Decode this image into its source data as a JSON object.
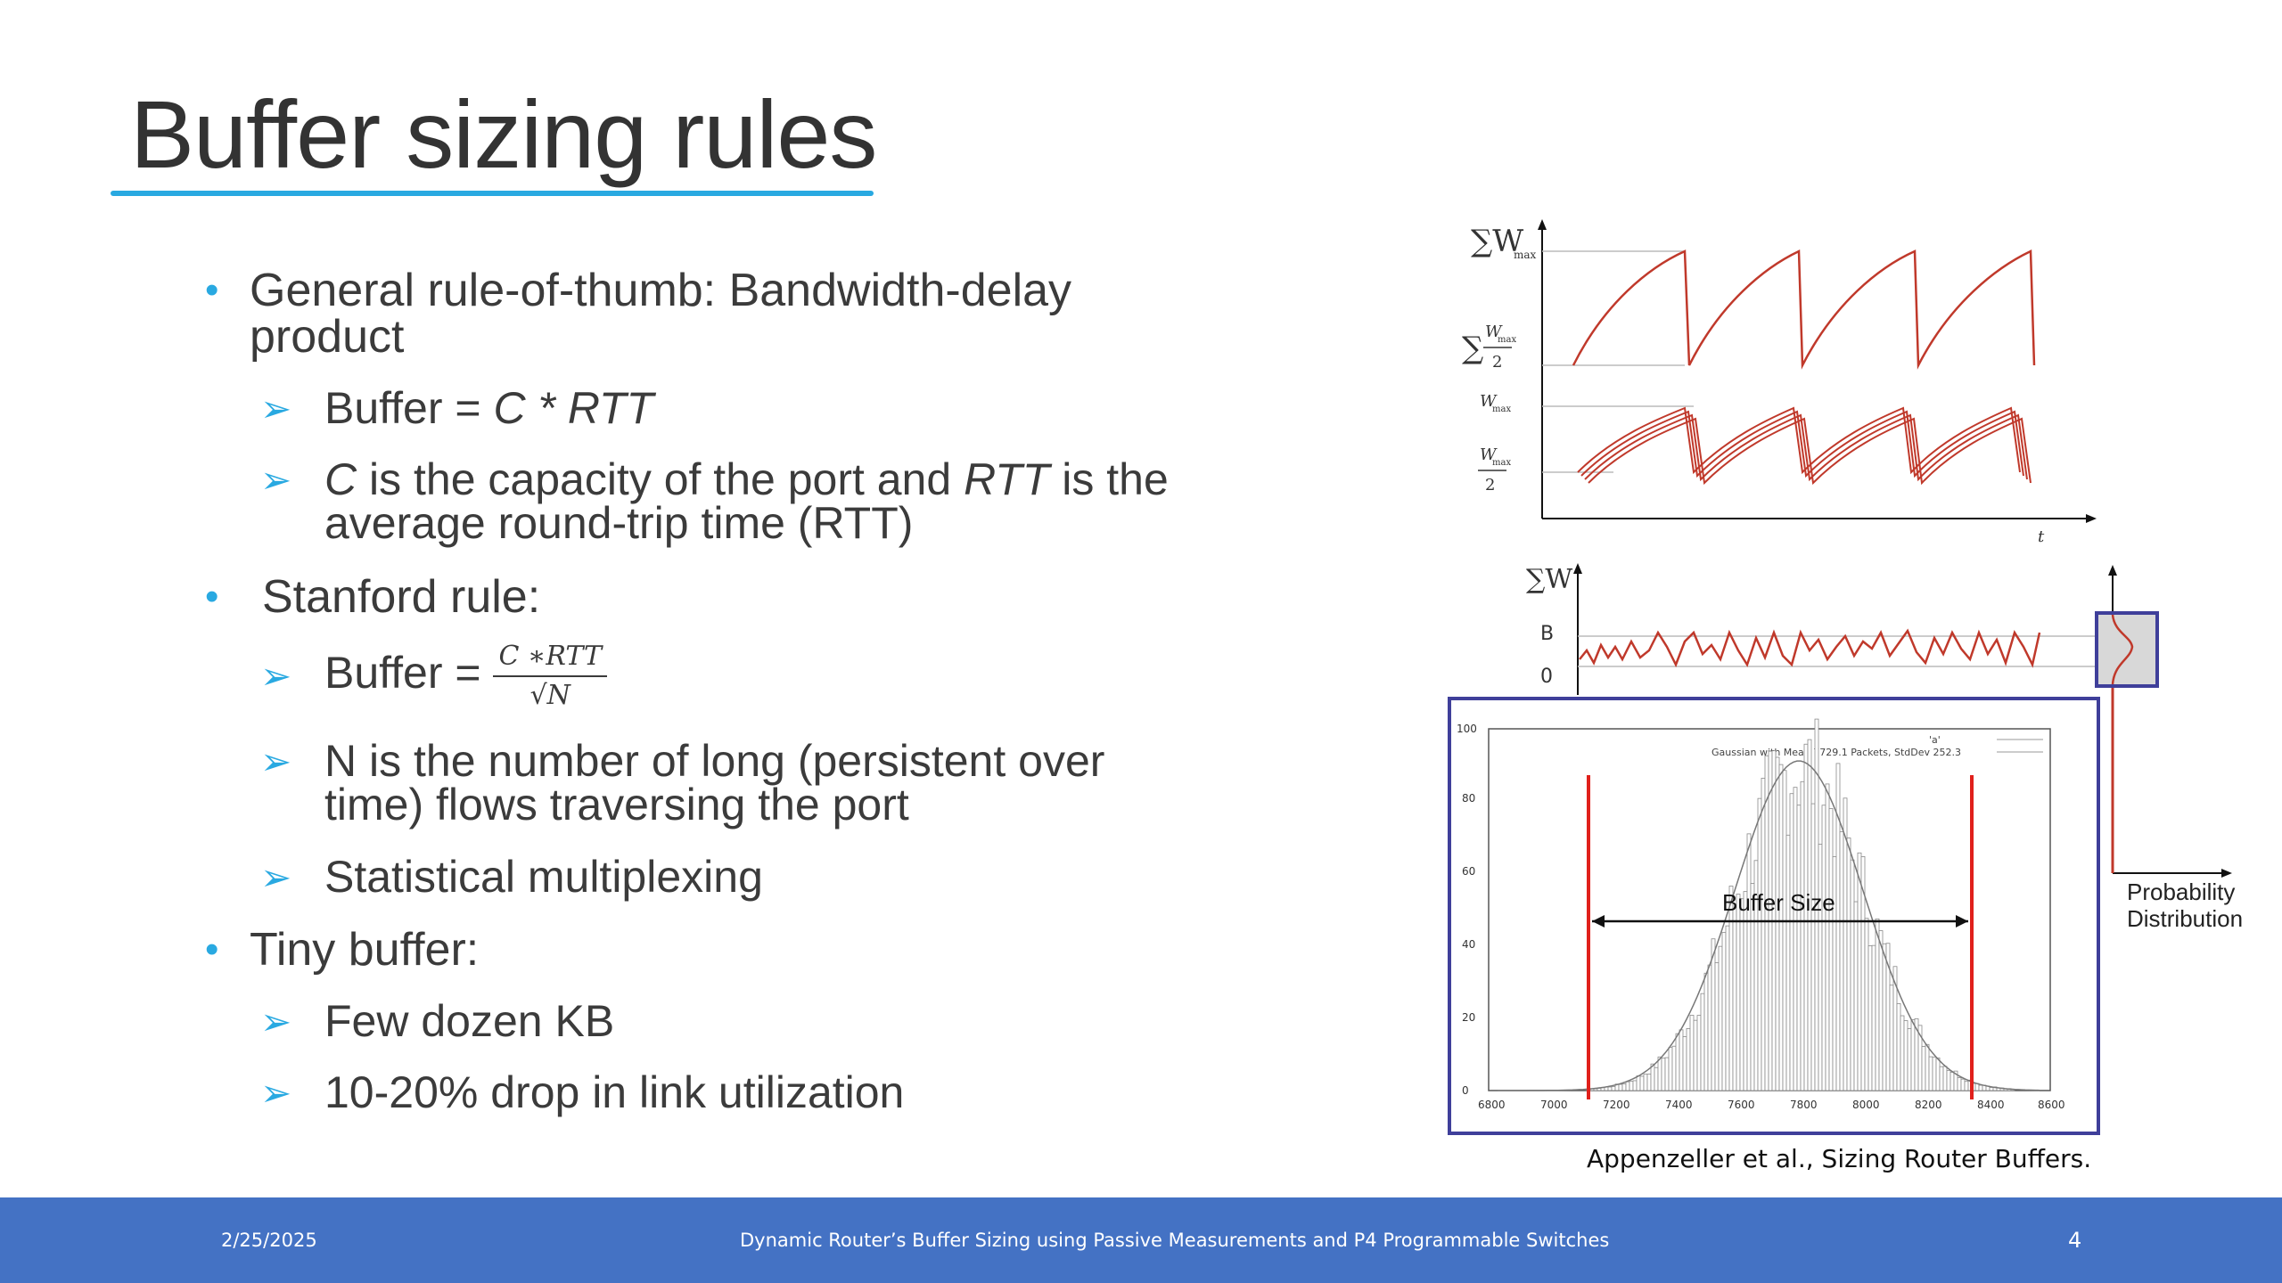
{
  "slide": {
    "title": "Buffer sizing rules",
    "bullets": [
      {
        "text": "General rule-of-thumb: Bandwidth-delay",
        "text2": "product"
      },
      {
        "text": "Stanford rule:"
      },
      {
        "text": "Tiny buffer:"
      }
    ],
    "sub": {
      "buffer_eq_prefix": "Buffer = ",
      "buffer_eq_expr": "C * RTT",
      "c_line_1a": "C",
      "c_line_1b": " is the capacity of the port and ",
      "c_line_1c": "RTT",
      "c_line_1d": " is the",
      "c_line_2": "average round-trip time (RTT)",
      "stanford_prefix": "Buffer = ",
      "stanford_num": "C ∗RTT",
      "stanford_den": "√N",
      "n_line_1": "N is the number of long (persistent over",
      "n_line_2": "time) flows traversing the port",
      "stat_mux": "Statistical multiplexing",
      "few_dozen": "Few dozen KB",
      "drop": "10-20% drop in link utilization"
    },
    "figure": {
      "top_labels": {
        "sum_wmax": "∑W",
        "sum_wmax_sub": "max",
        "sum_half": "∑",
        "w_max": "W",
        "w_max_sub": "max",
        "half": "2",
        "t": "t"
      },
      "mid_labels": {
        "sum_w": "∑W",
        "b": "B",
        "zero": "0"
      },
      "prob_label_1": "Probability",
      "prob_label_2": "Distribution",
      "hist_legend_1": "'a'",
      "hist_legend_2": "Gaussian with Mean 7729.1 Packets, StdDev 252.3",
      "buffer_size_label": "Buffer Size",
      "y_ticks": [
        "0",
        "20",
        "40",
        "60",
        "80",
        "100"
      ],
      "x_ticks": [
        "6800",
        "7000",
        "7200",
        "7400",
        "7600",
        "7800",
        "8000",
        "8200",
        "8400",
        "8600"
      ]
    },
    "caption": "Appenzeller et al., Sizing Router Buffers."
  },
  "footer": {
    "date": "2/25/2025",
    "title": "Dynamic Router’s Buffer Sizing using Passive Measurements and P4 Programmable Switches",
    "page": "4"
  },
  "colors": {
    "accent": "#29a9e1",
    "footer": "#4472c4",
    "curve": "#c0392b",
    "frame": "#3f3f9a",
    "redline": "#e0201b"
  }
}
